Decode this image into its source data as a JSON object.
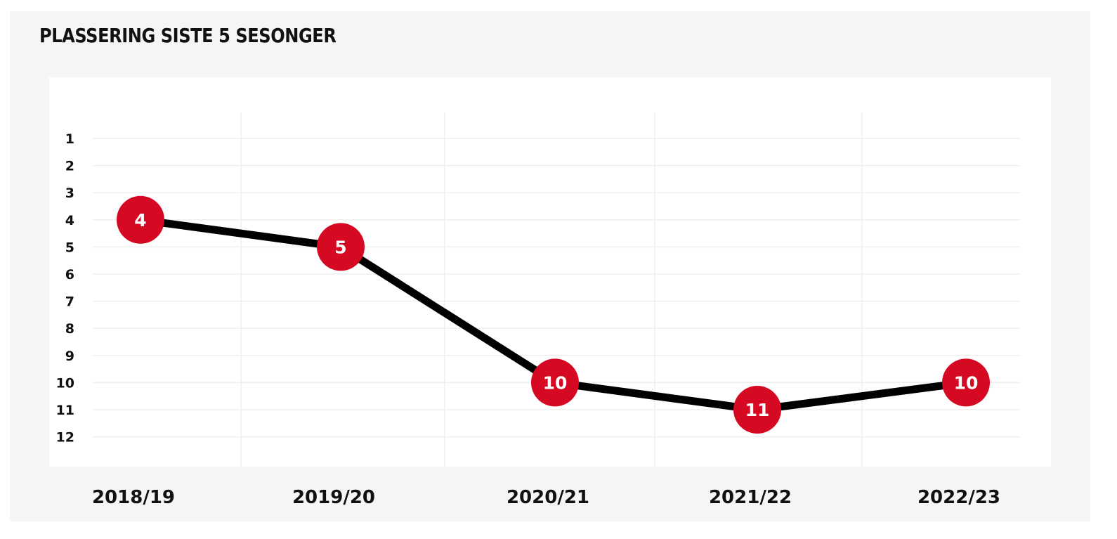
{
  "title": "PLASSERING SISTE 5 SESONGER",
  "colors": {
    "background": "#f5f5f5",
    "plot_area": "#ffffff",
    "line": "#000000",
    "marker": "#d50a22",
    "marker_text": "#ffffff",
    "grid": "#efefef"
  },
  "chart_data": {
    "type": "line",
    "title": "PLASSERING SISTE 5 SESONGER",
    "xlabel": "",
    "ylabel": "",
    "categories": [
      "2018/19",
      "2019/20",
      "2020/21",
      "2021/22",
      "2022/23"
    ],
    "series": [
      {
        "values": [
          4,
          5,
          10,
          11,
          10
        ],
        "labels": [
          "4",
          "5",
          "10",
          "11",
          "10"
        ]
      }
    ],
    "y_ticks": [
      1,
      2,
      3,
      4,
      5,
      6,
      7,
      8,
      9,
      10,
      11,
      12
    ],
    "ylim": [
      1,
      12
    ],
    "y_inverted": true,
    "grid": true,
    "legend": "none"
  }
}
